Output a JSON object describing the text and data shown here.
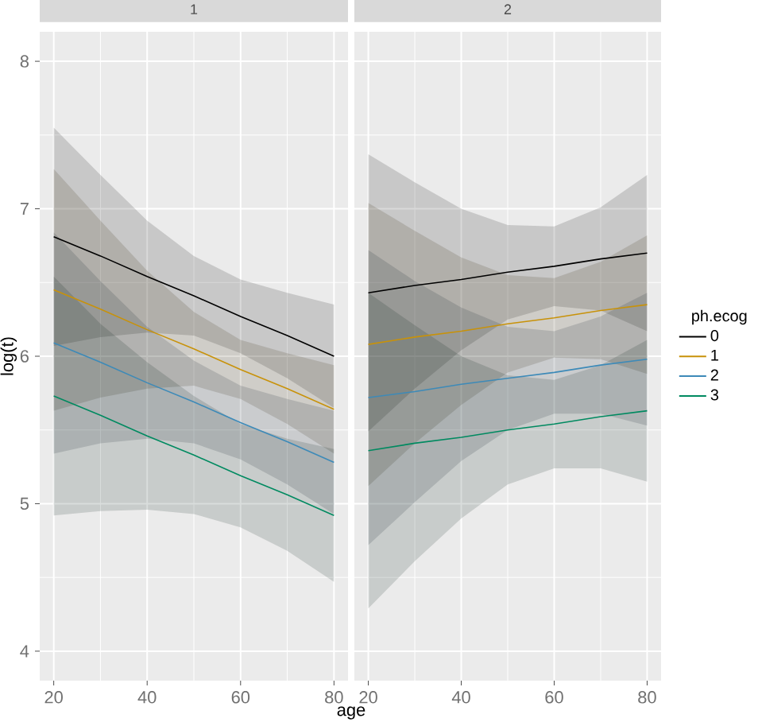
{
  "chart_data": [
    {
      "type": "line",
      "title": "1",
      "xlabel": "age",
      "ylabel": "log(t)",
      "x": [
        20,
        30,
        40,
        50,
        60,
        70,
        80
      ],
      "xlim": [
        17,
        83
      ],
      "ylim": [
        3.8,
        8.2
      ],
      "xticks": [
        20,
        40,
        60,
        80
      ],
      "yticks": [
        4,
        5,
        6,
        7,
        8
      ],
      "grid": true,
      "series": [
        {
          "color": "#000000",
          "values": [
            6.81,
            6.68,
            6.54,
            6.41,
            6.27,
            6.14,
            6.0
          ],
          "upper": [
            7.55,
            7.23,
            6.92,
            6.68,
            6.52,
            6.43,
            6.35
          ],
          "lower": [
            6.07,
            6.13,
            6.16,
            6.14,
            6.02,
            5.85,
            5.65
          ]
        },
        {
          "color": "#c8920a",
          "values": [
            6.45,
            6.32,
            6.18,
            6.05,
            5.91,
            5.78,
            5.64
          ],
          "upper": [
            7.27,
            6.92,
            6.58,
            6.3,
            6.11,
            6.02,
            5.94
          ],
          "lower": [
            5.63,
            5.72,
            5.78,
            5.8,
            5.71,
            5.54,
            5.34
          ]
        },
        {
          "color": "#3d8ab8",
          "values": [
            6.09,
            5.96,
            5.82,
            5.69,
            5.55,
            5.42,
            5.28
          ],
          "upper": [
            6.84,
            6.51,
            6.2,
            5.97,
            5.8,
            5.71,
            5.63
          ],
          "lower": [
            5.34,
            5.41,
            5.44,
            5.41,
            5.3,
            5.13,
            4.93
          ]
        },
        {
          "color": "#008a60",
          "values": [
            5.73,
            5.6,
            5.46,
            5.33,
            5.19,
            5.06,
            4.92
          ],
          "upper": [
            6.54,
            6.22,
            5.96,
            5.73,
            5.54,
            5.44,
            5.37
          ],
          "lower": [
            4.92,
            4.95,
            4.96,
            4.93,
            4.84,
            4.68,
            4.47
          ]
        }
      ]
    },
    {
      "type": "line",
      "title": "2",
      "legend_title": "ph.ecog",
      "legend": "right",
      "tick_labels": "x",
      "x": [
        20,
        30,
        40,
        50,
        60,
        70,
        80
      ],
      "xlim": [
        17,
        83
      ],
      "ylim": [
        3.8,
        8.2
      ],
      "xticks": [
        20,
        40,
        60,
        80
      ],
      "yticks": [
        4,
        5,
        6,
        7,
        8
      ],
      "grid": true,
      "series": [
        {
          "name": "0",
          "color": "#000000",
          "values": [
            6.43,
            6.48,
            6.52,
            6.57,
            6.61,
            6.66,
            6.7
          ],
          "upper": [
            7.37,
            7.18,
            7.0,
            6.89,
            6.88,
            7.01,
            7.23
          ],
          "lower": [
            5.49,
            5.78,
            6.04,
            6.25,
            6.34,
            6.31,
            6.17
          ]
        },
        {
          "name": "1",
          "color": "#c8920a",
          "values": [
            6.08,
            6.13,
            6.17,
            6.22,
            6.26,
            6.31,
            6.35
          ],
          "upper": [
            7.04,
            6.85,
            6.67,
            6.55,
            6.53,
            6.64,
            6.82
          ],
          "lower": [
            5.12,
            5.41,
            5.67,
            5.89,
            5.99,
            5.98,
            5.88
          ]
        },
        {
          "name": "2",
          "color": "#3d8ab8",
          "values": [
            5.72,
            5.76,
            5.81,
            5.85,
            5.89,
            5.94,
            5.98
          ],
          "upper": [
            6.72,
            6.51,
            6.33,
            6.2,
            6.17,
            6.27,
            6.43
          ],
          "lower": [
            4.72,
            5.01,
            5.29,
            5.5,
            5.61,
            5.61,
            5.53
          ]
        },
        {
          "name": "3",
          "color": "#008a60",
          "values": [
            5.36,
            5.41,
            5.45,
            5.5,
            5.54,
            5.59,
            5.63
          ],
          "upper": [
            6.43,
            6.21,
            6.0,
            5.87,
            5.84,
            5.94,
            6.11
          ],
          "lower": [
            4.29,
            4.61,
            4.9,
            5.13,
            5.24,
            5.24,
            5.15
          ]
        }
      ]
    }
  ]
}
